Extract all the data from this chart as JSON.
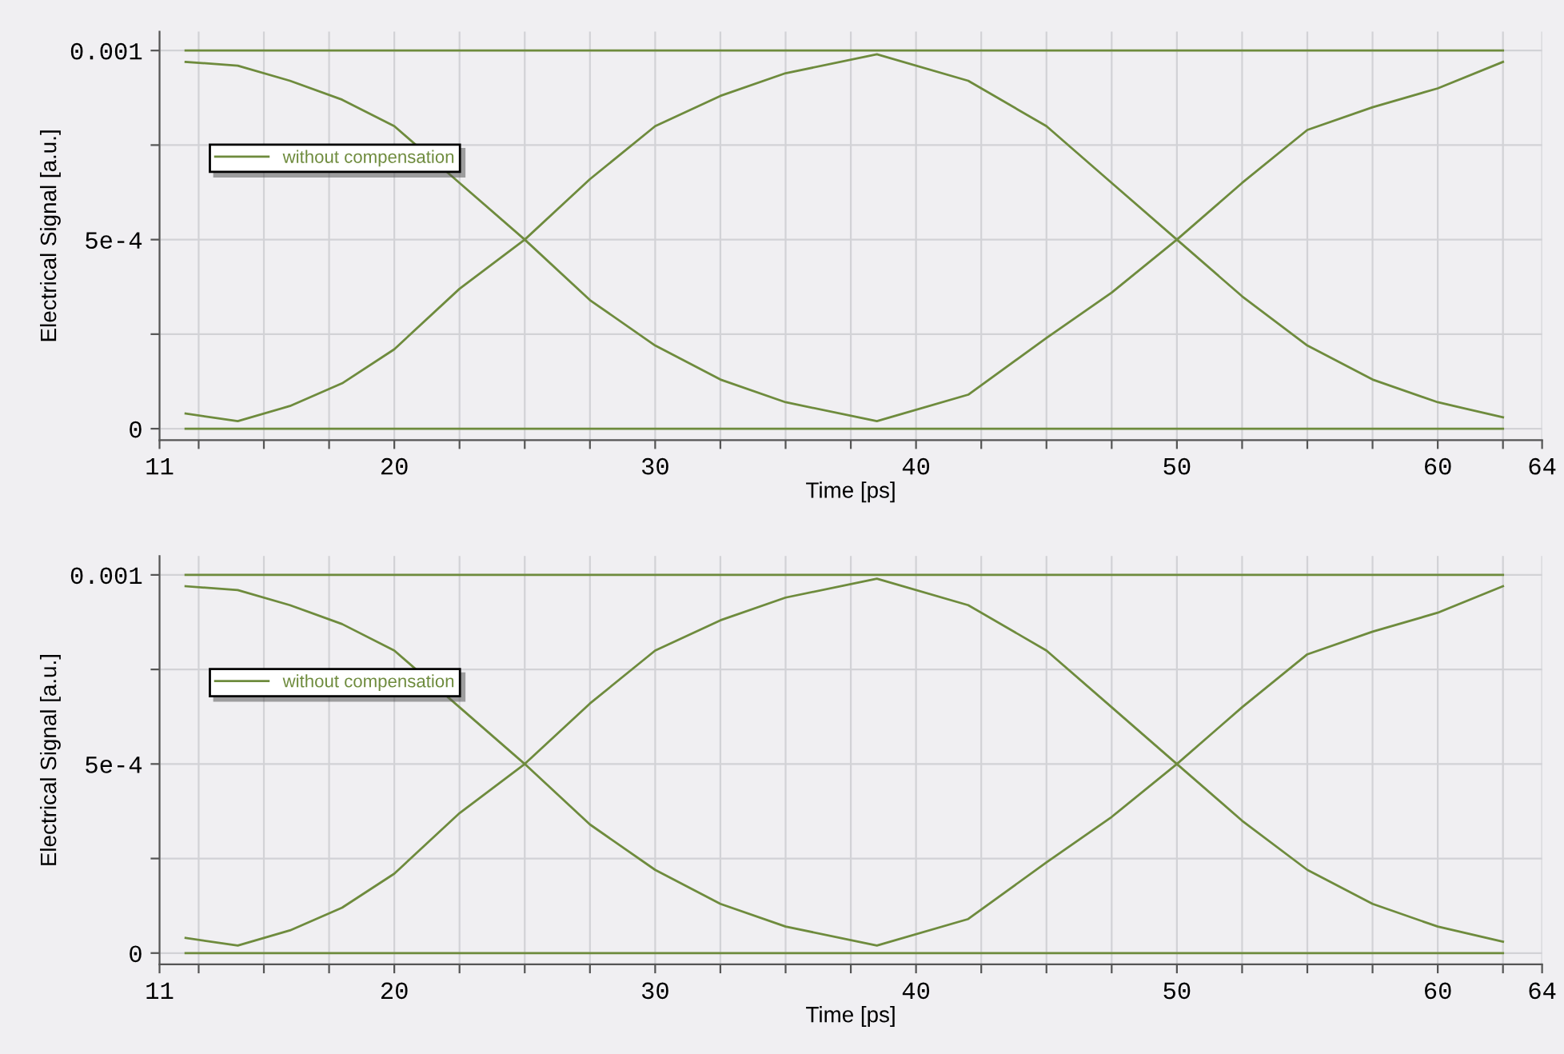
{
  "chart_data": [
    {
      "type": "line",
      "xlabel": "Time [ps]",
      "ylabel": "Electrical Signal [a.u.]",
      "xlim": [
        11,
        64
      ],
      "ylim": [
        -3e-05,
        0.00105
      ],
      "xticks": [
        11,
        {
          "value": 12.5,
          "label": null
        },
        {
          "value": 15,
          "label": null
        },
        {
          "value": 17.5,
          "label": null
        },
        20,
        {
          "value": 22.5,
          "label": null
        },
        {
          "value": 25,
          "label": null
        },
        {
          "value": 27.5,
          "label": null
        },
        30,
        {
          "value": 32.5,
          "label": null
        },
        {
          "value": 35,
          "label": null
        },
        {
          "value": 37.5,
          "label": null
        },
        40,
        {
          "value": 42.5,
          "label": null
        },
        {
          "value": 45,
          "label": null
        },
        {
          "value": 47.5,
          "label": null
        },
        50,
        {
          "value": 52.5,
          "label": null
        },
        {
          "value": 55,
          "label": null
        },
        {
          "value": 57.5,
          "label": null
        },
        60,
        {
          "value": 62.5,
          "label": null
        },
        64
      ],
      "yticks": [
        0,
        {
          "value": 0.00025,
          "label": null
        },
        {
          "value": 0.0005,
          "label": "5e-4"
        },
        {
          "value": 0.00075,
          "label": null
        },
        0.001
      ],
      "grid": true,
      "legend": "top left",
      "line_style": "solid",
      "marker": "none",
      "series": [
        {
          "name": "without compensation",
          "color": "#6e8b3d",
          "x": [
            12,
            62.5
          ],
          "values": [
            0.001,
            0.001
          ]
        },
        {
          "color": "#6e8b3d",
          "x": [
            12,
            62.5
          ],
          "values": [
            0,
            0
          ]
        },
        {
          "color": "#6e8b3d",
          "x": [
            12,
            14,
            16,
            18,
            20,
            22.5,
            25,
            27.5,
            30,
            32.5,
            35,
            38.5,
            42,
            45,
            47.5,
            50,
            52.5,
            55,
            57.5,
            60,
            62.5
          ],
          "values": [
            0.00097,
            0.00096,
            0.00092,
            0.00087,
            0.0008,
            0.00065,
            0.0005,
            0.00034,
            0.00022,
            0.00013,
            7e-05,
            2e-05,
            9e-05,
            0.00024,
            0.00036,
            0.0005,
            0.00065,
            0.00079,
            0.00085,
            0.0009,
            0.00097
          ]
        },
        {
          "color": "#6e8b3d",
          "x": [
            12,
            14,
            16,
            18,
            20,
            22.5,
            25,
            27.5,
            30,
            32.5,
            35,
            38.5,
            42,
            45,
            47.5,
            50,
            52.5,
            55,
            57.5,
            60,
            62.5
          ],
          "values": [
            4e-05,
            2e-05,
            6e-05,
            0.00012,
            0.00021,
            0.00037,
            0.0005,
            0.00066,
            0.0008,
            0.00088,
            0.00094,
            0.00099,
            0.00092,
            0.0008,
            0.00065,
            0.0005,
            0.00035,
            0.00022,
            0.00013,
            7e-05,
            3e-05
          ]
        }
      ]
    },
    {
      "type": "line",
      "xlabel": "Time [ps]",
      "ylabel": "Electrical Signal [a.u.]",
      "xlim": [
        11,
        64
      ],
      "ylim": [
        -3e-05,
        0.00105
      ],
      "xticks": [
        11,
        {
          "value": 12.5,
          "label": null
        },
        {
          "value": 15,
          "label": null
        },
        {
          "value": 17.5,
          "label": null
        },
        20,
        {
          "value": 22.5,
          "label": null
        },
        {
          "value": 25,
          "label": null
        },
        {
          "value": 27.5,
          "label": null
        },
        30,
        {
          "value": 32.5,
          "label": null
        },
        {
          "value": 35,
          "label": null
        },
        {
          "value": 37.5,
          "label": null
        },
        40,
        {
          "value": 42.5,
          "label": null
        },
        {
          "value": 45,
          "label": null
        },
        {
          "value": 47.5,
          "label": null
        },
        50,
        {
          "value": 52.5,
          "label": null
        },
        {
          "value": 55,
          "label": null
        },
        {
          "value": 57.5,
          "label": null
        },
        60,
        {
          "value": 62.5,
          "label": null
        },
        64
      ],
      "yticks": [
        0,
        {
          "value": 0.00025,
          "label": null
        },
        {
          "value": 0.0005,
          "label": "5e-4"
        },
        {
          "value": 0.00075,
          "label": null
        },
        0.001
      ],
      "grid": true,
      "legend": "top left",
      "line_style": "solid",
      "marker": "none",
      "series": [
        {
          "name": "without compensation",
          "color": "#6e8b3d",
          "x": [
            12,
            62.5
          ],
          "values": [
            0.001,
            0.001
          ]
        },
        {
          "color": "#6e8b3d",
          "x": [
            12,
            62.5
          ],
          "values": [
            0,
            0
          ]
        },
        {
          "color": "#6e8b3d",
          "x": [
            12,
            14,
            16,
            18,
            20,
            22.5,
            25,
            27.5,
            30,
            32.5,
            35,
            38.5,
            42,
            45,
            47.5,
            50,
            52.5,
            55,
            57.5,
            60,
            62.5
          ],
          "values": [
            0.00097,
            0.00096,
            0.00092,
            0.00087,
            0.0008,
            0.00065,
            0.0005,
            0.00034,
            0.00022,
            0.00013,
            7e-05,
            2e-05,
            9e-05,
            0.00024,
            0.00036,
            0.0005,
            0.00065,
            0.00079,
            0.00085,
            0.0009,
            0.00097
          ]
        },
        {
          "color": "#6e8b3d",
          "x": [
            12,
            14,
            16,
            18,
            20,
            22.5,
            25,
            27.5,
            30,
            32.5,
            35,
            38.5,
            42,
            45,
            47.5,
            50,
            52.5,
            55,
            57.5,
            60,
            62.5
          ],
          "values": [
            4e-05,
            2e-05,
            6e-05,
            0.00012,
            0.00021,
            0.00037,
            0.0005,
            0.00066,
            0.0008,
            0.00088,
            0.00094,
            0.00099,
            0.00092,
            0.0008,
            0.00065,
            0.0005,
            0.00035,
            0.00022,
            0.00013,
            7e-05,
            3e-05
          ]
        }
      ]
    }
  ]
}
